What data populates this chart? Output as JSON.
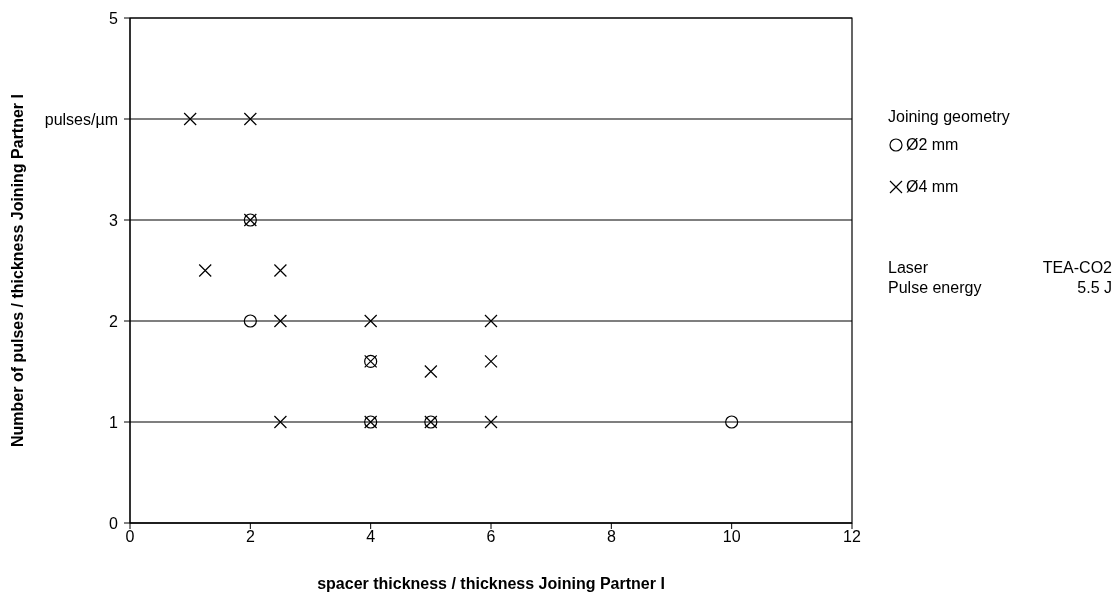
{
  "chart_data": {
    "type": "scatter",
    "xlabel": "spacer thickness  / thickness Joining Partner I",
    "ylabel": "Number of pulses / thickness Joining Partner I",
    "legend_title": "Joining geometry",
    "legend": "right",
    "grid": "y",
    "xlim": [
      0,
      12
    ],
    "xticks": [
      0,
      2,
      4,
      6,
      8,
      10,
      12
    ],
    "ylim": [
      0,
      5
    ],
    "yticks": [
      0,
      1,
      2,
      3,
      {
        "value": 4,
        "label": "pulses/µm"
      },
      5
    ],
    "series": [
      {
        "name": "Ø2 mm",
        "color": "#000000",
        "marker": "circle",
        "x": [
          2,
          2,
          4,
          4,
          5,
          10
        ],
        "values": [
          3,
          2,
          1.6,
          1,
          1,
          1
        ]
      },
      {
        "name": "Ø4 mm",
        "color": "#000000",
        "marker": "cross",
        "x": [
          1,
          2,
          1.25,
          2.5,
          2,
          2.5,
          4,
          6,
          4,
          6,
          5,
          2.5,
          4,
          5,
          6
        ],
        "values": [
          4,
          4,
          2.5,
          2.5,
          3,
          2,
          2,
          2,
          1.6,
          1.6,
          1.5,
          1,
          1,
          1,
          1
        ]
      }
    ],
    "annotations": [
      "Laser",
      "TEA-CO2",
      "Pulse energy",
      "5.5 J"
    ]
  }
}
